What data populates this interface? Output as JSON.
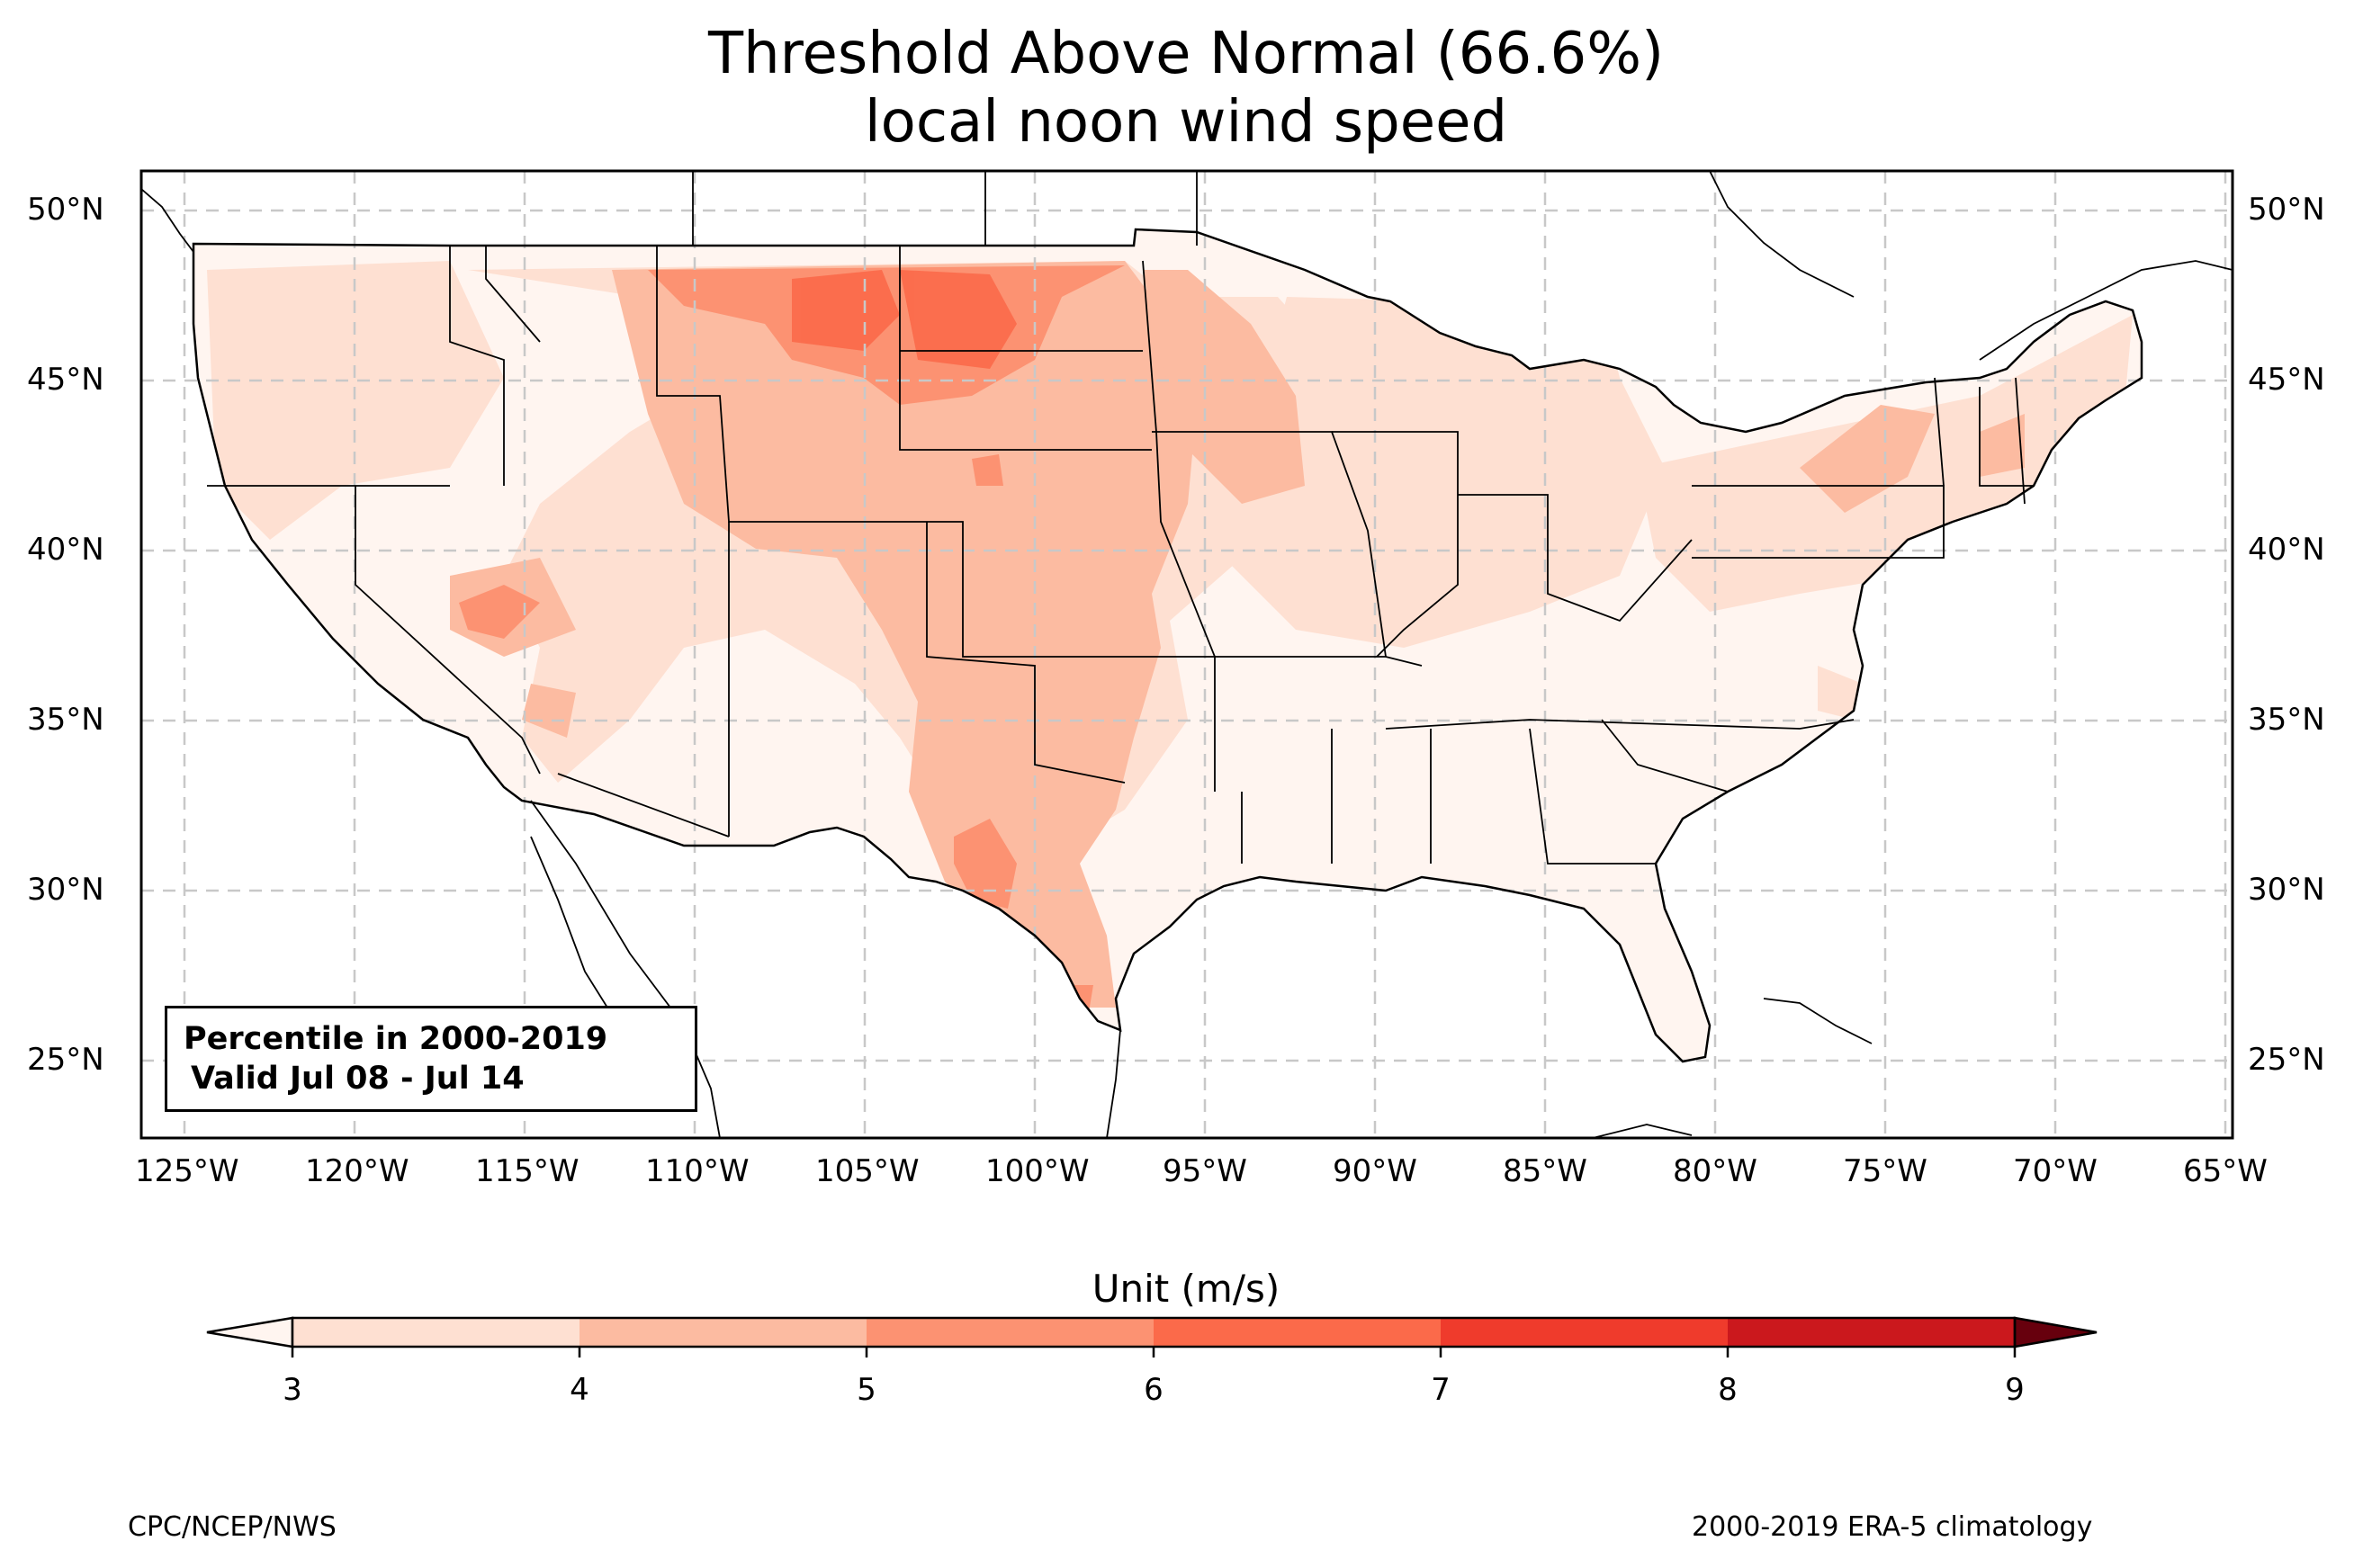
{
  "title": {
    "line1": "Threshold Above Normal (66.6%)",
    "line2": "local noon wind speed"
  },
  "map": {
    "region": "CONUS",
    "lon_range": [
      -126.2,
      -64.7
    ],
    "lat_range": [
      22.8,
      51.2
    ],
    "lat_ticks": [
      "25°N",
      "30°N",
      "35°N",
      "40°N",
      "45°N",
      "50°N"
    ],
    "lon_ticks": [
      "125°W",
      "120°W",
      "115°W",
      "110°W",
      "105°W",
      "100°W",
      "95°W",
      "90°W",
      "85°W",
      "80°W",
      "75°W",
      "70°W",
      "65°W"
    ],
    "gridlines": true
  },
  "legend_box": {
    "line1": "Percentile in 2000-2019",
    "line2": "Valid Jul 08 - Jul 14"
  },
  "colorbar": {
    "label": "Unit (m/s)",
    "ticks": [
      "3",
      "4",
      "5",
      "6",
      "7",
      "8",
      "9"
    ],
    "colors": [
      "#fee0d2",
      "#fcbba1",
      "#fc9272",
      "#fb6a4a",
      "#ef3b2c",
      "#cb181d",
      "#a50f15"
    ],
    "under_color": "#fff5f0",
    "over_color": "#67000d"
  },
  "credits": {
    "left": "CPC/NCEP/NWS",
    "right": "2000-2019 ERA-5 climatology"
  }
}
